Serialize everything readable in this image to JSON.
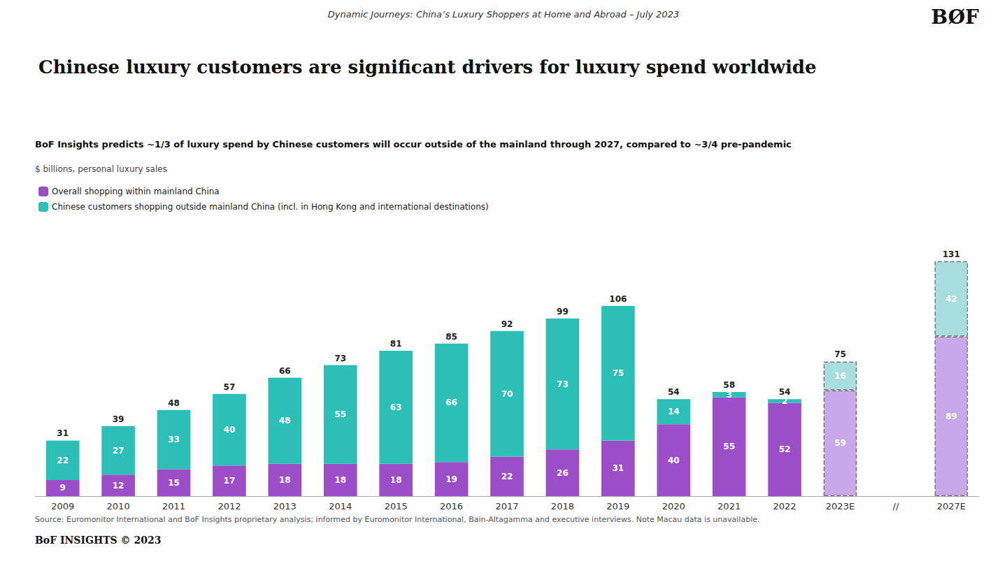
{
  "chart_data": {
    "type": "bar",
    "title": "Chinese luxury customers are significant drivers for luxury spend worldwide",
    "subtitle": "Dynamic Journeys: China’s Luxury Shoppers at Home and Abroad – July 2023",
    "ylabel": "$ billions, personal luxury sales",
    "annotations": [
      "BoF Insights predicts ~1/3 of luxury spend by Chinese customers will occur outside of the mainland through 2027, compared to ~3/4 pre-pandemic",
      "Source: Euromonitor International and BoF Insights proprietary analysis; informed by Euromonitor International, Bain-Altagamma and executive interviews. Note Macau data is unavailable.",
      "BØF",
      "BoF INSIGHTS © 2023"
    ],
    "categories": [
      "2009",
      "2010",
      "2011",
      "2012",
      "2013",
      "2014",
      "2015",
      "2016",
      "2017",
      "2018",
      "2019",
      "2020",
      "2021",
      "2022",
      "2023E",
      "//",
      "2027E"
    ],
    "series": [
      {
        "name": "Overall shopping within mainland China",
        "color": "#9B4EC7",
        "colors": [
          "#9B4EC7",
          "#9B4EC7",
          "#9B4EC7",
          "#9B4EC7",
          "#9B4EC7",
          "#9B4EC7",
          "#9B4EC7",
          "#9B4EC7",
          "#9B4EC7",
          "#9B4EC7",
          "#9B4EC7",
          "#9B4EC7",
          "#9B4EC7",
          "#9B4EC7",
          "#C8A8E8",
          null,
          "#C8A8E8"
        ],
        "values": [
          9,
          12,
          15,
          17,
          18,
          18,
          18,
          19,
          22,
          26,
          31,
          40,
          55,
          52,
          59,
          null,
          89
        ]
      },
      {
        "name": "Chinese customers shopping outside mainland China (incl. in Hong Kong and international destinations)",
        "color": "#2BBFB8",
        "colors": [
          "#2BBFB8",
          "#2BBFB8",
          "#2BBFB8",
          "#2BBFB8",
          "#2BBFB8",
          "#2BBFB8",
          "#2BBFB8",
          "#2BBFB8",
          "#2BBFB8",
          "#2BBFB8",
          "#2BBFB8",
          "#2BBFB8",
          "#2BBFB8",
          "#2BBFB8",
          "#A8DEDE",
          null,
          "#A8DEDE"
        ],
        "values": [
          22,
          27,
          33,
          40,
          48,
          55,
          63,
          66,
          70,
          73,
          75,
          14,
          3,
          2,
          16,
          null,
          42
        ]
      }
    ],
    "totals": [
      31,
      39,
      48,
      57,
      66,
      73,
      81,
      85,
      92,
      99,
      106,
      54,
      58,
      54,
      75,
      null,
      131
    ],
    "stacked": true,
    "data_labels": true,
    "legend": "upper left",
    "grid": false,
    "tick_labels": "x",
    "ylim": [
      0,
      148
    ]
  }
}
